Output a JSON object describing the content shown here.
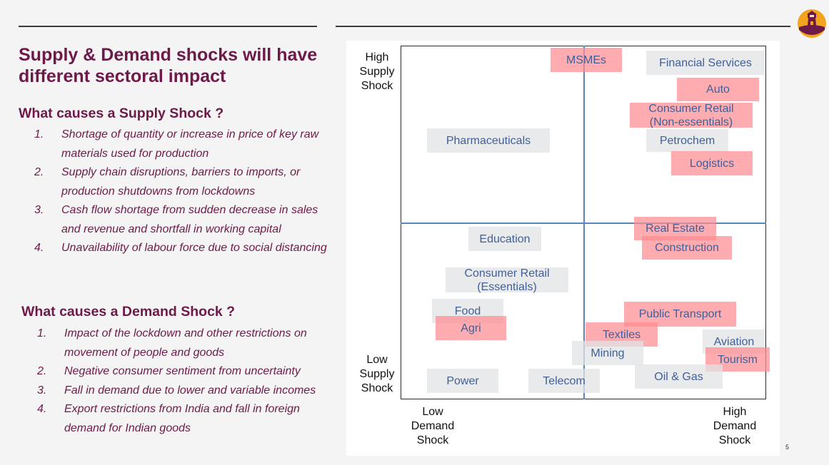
{
  "title": "Supply & Demand shocks will have different sectoral impact",
  "supply": {
    "heading": "What causes a Supply Shock ?",
    "items": [
      {
        "num": "1.",
        "text": "Shortage of quantity or increase in price of key raw materials used for production"
      },
      {
        "num": "2.",
        "text": "Supply chain disruptions, barriers to imports, or production shutdowns from lockdowns"
      },
      {
        "num": "3.",
        "text": "Cash flow shortage from sudden decrease in sales and revenue and shortfall in working capital"
      },
      {
        "num": "4.",
        "text": "Unavailability of labour force due to social distancing"
      }
    ]
  },
  "demand": {
    "heading": "What causes a Demand Shock ?",
    "items": [
      {
        "num": "1.",
        "text": "Impact of the lockdown and other restrictions on movement of people and goods"
      },
      {
        "num": "2.",
        "text": "Negative consumer sentiment from uncertainty"
      },
      {
        "num": "3.",
        "text": "Fall in demand due to lower and variable incomes"
      },
      {
        "num": "4.",
        "text": "Export restrictions from India and fall in foreign demand for Indian goods"
      }
    ]
  },
  "matrix": {
    "y_high": "High\nSupply\nShock",
    "y_low": "Low\nSupply\nShock",
    "x_low": "Low\nDemand\nShock",
    "x_high": "High\nDemand\nShock",
    "sectors": {
      "msmes": "MSMEs",
      "financial_services": "Financial Services",
      "auto": "Auto",
      "consumer_retail_ne": "Consumer Retail\n(Non-essentials)",
      "pharmaceuticals": "Pharmaceuticals",
      "petrochem": "Petrochem",
      "logistics": "Logistics",
      "education": "Education",
      "real_estate": "Real Estate",
      "construction": "Construction",
      "consumer_retail_e": "Consumer Retail\n(Essentials)",
      "food": "Food",
      "agri": "Agri",
      "public_transport": "Public Transport",
      "textiles": "Textiles",
      "aviation": "Aviation",
      "mining": "Mining",
      "tourism": "Tourism",
      "power": "Power",
      "telecom": "Telecom",
      "oil_gas": "Oil & Gas"
    }
  },
  "colors": {
    "title": "#6e1a49",
    "high_impact": "#ff8c91",
    "low_impact": "#e1e3e6",
    "sector_text": "#3f5f98",
    "axis": "#5b86b8"
  },
  "logo": "lighthouse-logo",
  "page_number": "5"
}
